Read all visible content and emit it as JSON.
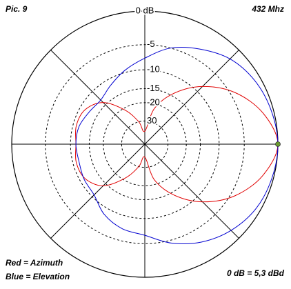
{
  "chart_data": {
    "type": "polar",
    "title": "Pic. 9",
    "subtitle": "432 Mhz",
    "annotation": "0 dB = 5,3 dBd",
    "scale": "arrl-log",
    "angles": [
      0,
      15,
      30,
      45,
      60,
      75,
      90,
      105,
      120,
      135,
      150,
      165,
      180,
      195,
      210,
      225,
      240,
      255,
      270,
      285,
      300,
      315,
      330,
      345
    ],
    "series": [
      {
        "name": "Red = Azimuth",
        "color": "#e00000",
        "values": [
          0,
          -1.5,
          -4.3,
          -8.4,
          -14,
          -22,
          -40,
          -30,
          -21,
          -14,
          -11.3,
          -10.8,
          -11.3,
          -10.8,
          -11.3,
          -14,
          -21,
          -30,
          -40,
          -22,
          -14,
          -8.4,
          -4.3,
          -1.5
        ]
      },
      {
        "name": "Blue = Elevation",
        "color": "#0000d0",
        "values": [
          0,
          -0.3,
          -0.8,
          -1.7,
          -3.3,
          -5,
          -7.5,
          -9.5,
          -11.5,
          -13,
          -12.5,
          -11.5,
          -11.3,
          -11.5,
          -11,
          -10.6,
          -8.5,
          -7.2,
          -6.5,
          -4.5,
          -2.8,
          -1.5,
          -0.6,
          -0.2
        ]
      }
    ],
    "rlim": [
      -40,
      0
    ],
    "rticks": [
      {
        "value": 0,
        "label": "0 dB"
      },
      -5,
      -10,
      -15,
      -20,
      {
        "value": -30,
        "label": "30"
      }
    ]
  }
}
